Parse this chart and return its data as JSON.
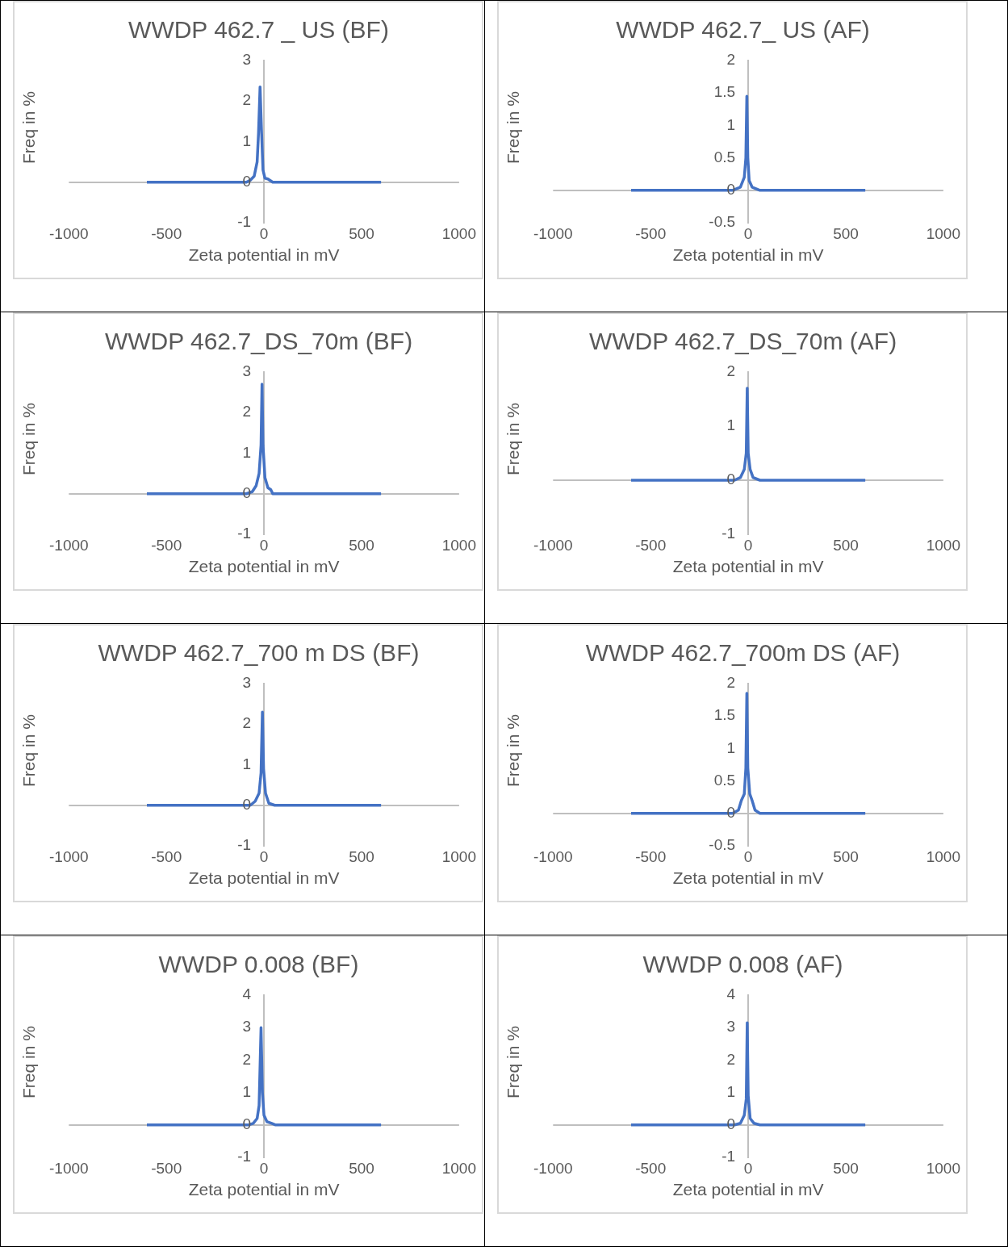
{
  "chart_data": [
    {
      "type": "line",
      "title": "WWDP 462.7 _ US (BF)",
      "xlabel": "Zeta potential in mV",
      "ylabel": "Freq in %",
      "xlim": [
        -1000,
        1000
      ],
      "xticks": [
        -1000,
        -500,
        0,
        500,
        1000
      ],
      "ylim": [
        -1,
        3
      ],
      "yticks": [
        -1,
        0,
        1,
        2,
        3
      ],
      "marker": "none",
      "series": [
        {
          "color": "#4472c4",
          "x": [
            -600,
            -90,
            -70,
            -50,
            -35,
            -28,
            -20,
            -12,
            -5,
            5,
            20,
            45,
            600
          ],
          "values": [
            0,
            0,
            0.05,
            0.15,
            0.5,
            1.2,
            2.35,
            1.2,
            0.3,
            0.1,
            0.08,
            0,
            0
          ]
        }
      ]
    },
    {
      "type": "line",
      "title": "WWDP 462.7_ US (AF)",
      "xlabel": "Zeta potential in mV",
      "ylabel": "Freq in %",
      "xlim": [
        -1000,
        1000
      ],
      "xticks": [
        -1000,
        -500,
        0,
        500,
        1000
      ],
      "ylim": [
        -0.5,
        2
      ],
      "yticks": [
        -0.5,
        0,
        0.5,
        1,
        1.5,
        2
      ],
      "marker": "none",
      "series": [
        {
          "color": "#4472c4",
          "x": [
            -600,
            -80,
            -40,
            -20,
            -12,
            -7,
            -2,
            5,
            20,
            60,
            600
          ],
          "values": [
            0,
            0,
            0.05,
            0.2,
            0.5,
            1.45,
            0.5,
            0.15,
            0.05,
            0,
            0
          ]
        }
      ]
    },
    {
      "type": "line",
      "title": "WWDP 462.7_DS_70m (BF)",
      "xlabel": "Zeta potential in mV",
      "ylabel": "Freq in %",
      "xlim": [
        -1000,
        1000
      ],
      "xticks": [
        -1000,
        -500,
        0,
        500,
        1000
      ],
      "ylim": [
        -1,
        3
      ],
      "yticks": [
        -1,
        0,
        1,
        2,
        3
      ],
      "marker": "none",
      "series": [
        {
          "color": "#4472c4",
          "x": [
            -600,
            -90,
            -60,
            -40,
            -25,
            -15,
            -10,
            -5,
            5,
            20,
            35,
            45,
            600
          ],
          "values": [
            0,
            0,
            0.05,
            0.2,
            0.5,
            1.2,
            2.7,
            1.2,
            0.4,
            0.15,
            0.1,
            0,
            0
          ]
        }
      ]
    },
    {
      "type": "line",
      "title": "WWDP 462.7_DS_70m (AF)",
      "xlabel": "Zeta potential in mV",
      "ylabel": "Freq in %",
      "xlim": [
        -1000,
        1000
      ],
      "xticks": [
        -1000,
        -500,
        0,
        500,
        1000
      ],
      "ylim": [
        -1,
        2
      ],
      "yticks": [
        -1,
        0,
        1,
        2
      ],
      "marker": "none",
      "series": [
        {
          "color": "#4472c4",
          "x": [
            -600,
            -70,
            -40,
            -20,
            -10,
            -5,
            0,
            10,
            25,
            60,
            600
          ],
          "values": [
            0,
            0,
            0.05,
            0.2,
            0.5,
            1.7,
            0.5,
            0.2,
            0.05,
            0,
            0
          ]
        }
      ]
    },
    {
      "type": "line",
      "title": "WWDP 462.7_700 m DS (BF)",
      "xlabel": "Zeta potential in mV",
      "ylabel": "Freq in %",
      "xlim": [
        -1000,
        1000
      ],
      "xticks": [
        -1000,
        -500,
        0,
        500,
        1000
      ],
      "ylim": [
        -1,
        3
      ],
      "yticks": [
        -1,
        0,
        1,
        2,
        3
      ],
      "marker": "none",
      "series": [
        {
          "color": "#4472c4",
          "x": [
            -600,
            -70,
            -45,
            -25,
            -15,
            -8,
            -2,
            8,
            25,
            55,
            600
          ],
          "values": [
            0,
            0,
            0.1,
            0.3,
            0.8,
            2.3,
            0.9,
            0.3,
            0.05,
            0,
            0
          ]
        }
      ]
    },
    {
      "type": "line",
      "title": "WWDP 462.7_700m DS (AF)",
      "xlabel": "Zeta potential in mV",
      "ylabel": "Freq in %",
      "xlim": [
        -1000,
        1000
      ],
      "xticks": [
        -1000,
        -500,
        0,
        500,
        1000
      ],
      "ylim": [
        -0.5,
        2
      ],
      "yticks": [
        -0.5,
        0,
        0.5,
        1,
        1.5,
        2
      ],
      "marker": "none",
      "series": [
        {
          "color": "#4472c4",
          "x": [
            -600,
            -80,
            -50,
            -35,
            -20,
            -12,
            -7,
            -2,
            8,
            20,
            35,
            60,
            600
          ],
          "values": [
            0,
            0,
            0.05,
            0.2,
            0.3,
            0.7,
            1.85,
            0.7,
            0.3,
            0.2,
            0.05,
            0,
            0
          ]
        }
      ]
    },
    {
      "type": "line",
      "title": "WWDP 0.008 (BF)",
      "xlabel": "Zeta potential in mV",
      "ylabel": "Freq in %",
      "xlim": [
        -1000,
        1000
      ],
      "xticks": [
        -1000,
        -500,
        0,
        500,
        1000
      ],
      "ylim": [
        -1,
        4
      ],
      "yticks": [
        -1,
        0,
        1,
        2,
        3,
        4
      ],
      "marker": "none",
      "series": [
        {
          "color": "#4472c4",
          "x": [
            -600,
            -80,
            -55,
            -35,
            -25,
            -15,
            -8,
            0,
            15,
            40,
            60,
            600
          ],
          "values": [
            0,
            0,
            0.05,
            0.2,
            0.6,
            3.0,
            1.0,
            0.3,
            0.1,
            0.05,
            0,
            0
          ]
        }
      ]
    },
    {
      "type": "line",
      "title": "WWDP 0.008 (AF)",
      "xlabel": "Zeta potential in mV",
      "ylabel": "Freq in %",
      "xlim": [
        -1000,
        1000
      ],
      "xticks": [
        -1000,
        -500,
        0,
        500,
        1000
      ],
      "ylim": [
        -1,
        4
      ],
      "yticks": [
        -1,
        0,
        1,
        2,
        3,
        4
      ],
      "marker": "none",
      "series": [
        {
          "color": "#4472c4",
          "x": [
            -600,
            -70,
            -40,
            -20,
            -10,
            -5,
            0,
            10,
            30,
            60,
            600
          ],
          "values": [
            0,
            0,
            0.05,
            0.3,
            0.8,
            3.15,
            0.9,
            0.2,
            0.05,
            0,
            0
          ]
        }
      ]
    }
  ]
}
